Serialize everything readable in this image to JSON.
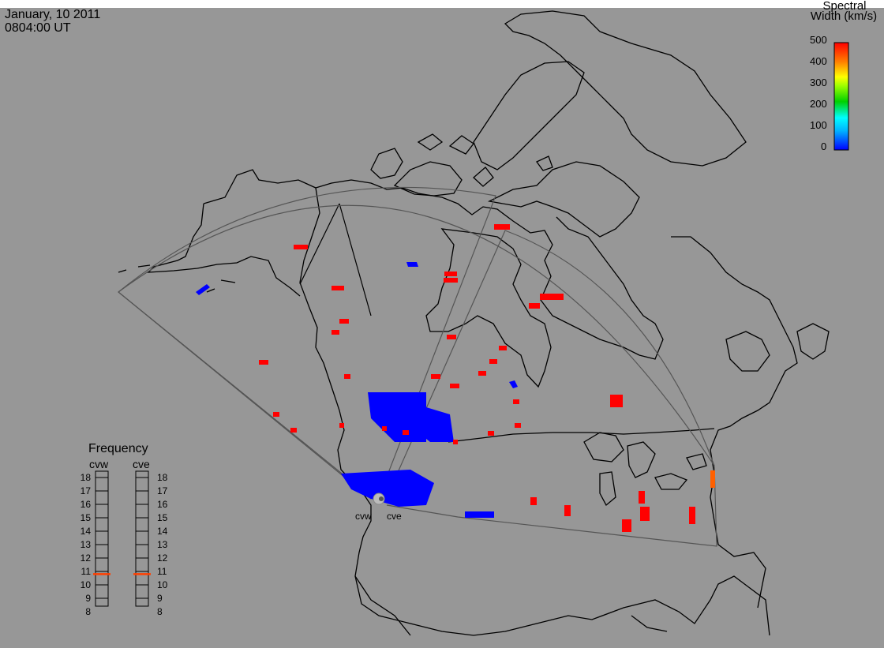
{
  "header": {
    "date": "January, 10 2011",
    "time": "0804:00 UT"
  },
  "colorbar": {
    "title_line1": "Spectral",
    "title_line2": "Width (km/s)",
    "ticks": [
      "500",
      "400",
      "300",
      "200",
      "100",
      "0"
    ],
    "range": [
      0,
      500
    ],
    "colors": [
      "#ff0000",
      "#ff8000",
      "#ffff00",
      "#00c000",
      "#00ffff",
      "#0040ff",
      "#0000ff"
    ]
  },
  "frequency_panel": {
    "title": "Frequency",
    "radars": [
      {
        "label": "cvw",
        "frequency_mhz": 10.8
      },
      {
        "label": "cve",
        "frequency_mhz": 10.8
      }
    ],
    "scale_ticks": [
      "18",
      "17",
      "16",
      "15",
      "14",
      "13",
      "12",
      "11",
      "10",
      "9",
      "8"
    ]
  },
  "stations": [
    {
      "label": "cvw"
    },
    {
      "label": "cve"
    }
  ],
  "colors": {
    "background": "#979797",
    "coastline": "#000000",
    "fov": "#555555",
    "low_width": "#0000ff",
    "high_width": "#ff0000",
    "medium_width": "#ff6000",
    "frequency_marker": "#ff4000"
  }
}
